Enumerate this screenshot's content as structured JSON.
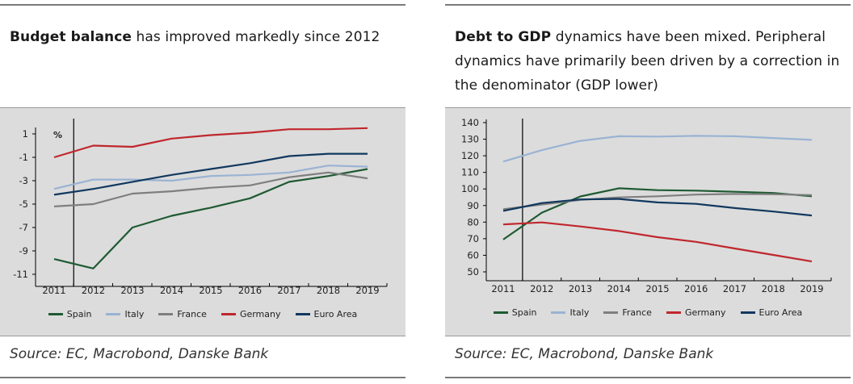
{
  "panels": [
    {
      "title_bold": "Budget balance",
      "title_rest": " has improved markedly since 2012",
      "source": "Source: EC, Macrobond, Danske Bank"
    },
    {
      "title_bold": "Debt to GDP",
      "title_rest": " dynamics have been mixed. Peripheral dynamics have primarily been driven by a correction in the denominator (GDP lower)",
      "source": "Source: EC, Macrobond, Danske Bank"
    }
  ],
  "chart_data": [
    {
      "type": "line",
      "title": "Budget balance has improved markedly since 2012",
      "ylabel": "%",
      "xlabel": "",
      "ylim": [
        -12,
        2
      ],
      "yticks": [
        1,
        -1,
        -3,
        -5,
        -7,
        -9,
        -11
      ],
      "xlim": [
        2011,
        2019
      ],
      "xticks": [
        "2011",
        "2012",
        "2013",
        "2014",
        "2015",
        "2016",
        "2017",
        "2018",
        "2019"
      ],
      "vline": 2011.5,
      "unit_label": "%",
      "series": [
        {
          "name": "Spain",
          "color": "#1f5a33",
          "x": [
            2011,
            2012,
            2013,
            2014,
            2015,
            2016,
            2017,
            2018,
            2019
          ],
          "values": [
            -9.7,
            -10.5,
            -7.0,
            -6.0,
            -5.3,
            -4.5,
            -3.1,
            -2.6,
            -2.0
          ]
        },
        {
          "name": "Italy",
          "color": "#9ab3d3",
          "x": [
            2011,
            2012,
            2013,
            2014,
            2015,
            2016,
            2017,
            2018,
            2019
          ],
          "values": [
            -3.7,
            -2.9,
            -2.9,
            -3.0,
            -2.6,
            -2.5,
            -2.3,
            -1.7,
            -1.8
          ]
        },
        {
          "name": "France",
          "color": "#7f7f7f",
          "x": [
            2011,
            2012,
            2013,
            2014,
            2015,
            2016,
            2017,
            2018,
            2019
          ],
          "values": [
            -5.2,
            -5.0,
            -4.1,
            -3.9,
            -3.6,
            -3.4,
            -2.7,
            -2.3,
            -2.8
          ]
        },
        {
          "name": "Germany",
          "color": "#c0272d",
          "x": [
            2011,
            2012,
            2013,
            2014,
            2015,
            2016,
            2017,
            2018,
            2019
          ],
          "values": [
            -1.0,
            0.0,
            -0.1,
            0.6,
            0.9,
            1.1,
            1.4,
            1.4,
            1.5
          ]
        },
        {
          "name": "Euro Area",
          "color": "#11385e",
          "x": [
            2011,
            2012,
            2013,
            2014,
            2015,
            2016,
            2017,
            2018,
            2019
          ],
          "values": [
            -4.2,
            -3.7,
            -3.1,
            -2.5,
            -2.0,
            -1.5,
            -0.9,
            -0.7,
            -0.7
          ]
        }
      ]
    },
    {
      "type": "line",
      "title": "Debt to GDP",
      "xlabel": "",
      "ylabel": "",
      "ylim": [
        45,
        143
      ],
      "yticks": [
        140,
        130,
        120,
        110,
        100,
        90,
        80,
        70,
        60,
        50
      ],
      "xlim": [
        2011,
        2019
      ],
      "xticks": [
        "2011",
        "2012",
        "2013",
        "2014",
        "2015",
        "2016",
        "2017",
        "2018",
        "2019"
      ],
      "vline": 2011.5,
      "series": [
        {
          "name": "Spain",
          "color": "#1f5a33",
          "x": [
            2011,
            2012,
            2013,
            2014,
            2015,
            2016,
            2017,
            2018,
            2019
          ],
          "values": [
            69.5,
            85.7,
            95.5,
            100.4,
            99.3,
            99.0,
            98.3,
            97.6,
            95.6
          ]
        },
        {
          "name": "Italy",
          "color": "#9ab3d3",
          "x": [
            2011,
            2012,
            2013,
            2014,
            2015,
            2016,
            2017,
            2018,
            2019
          ],
          "values": [
            116.5,
            123.4,
            129.0,
            131.8,
            131.6,
            132.0,
            131.8,
            130.7,
            129.6
          ]
        },
        {
          "name": "France",
          "color": "#7f7f7f",
          "x": [
            2011,
            2012,
            2013,
            2014,
            2015,
            2016,
            2017,
            2018,
            2019
          ],
          "values": [
            87.8,
            90.6,
            93.4,
            94.9,
            95.6,
            96.6,
            97.0,
            96.8,
            96.3
          ]
        },
        {
          "name": "Germany",
          "color": "#c0272d",
          "x": [
            2011,
            2012,
            2013,
            2014,
            2015,
            2016,
            2017,
            2018,
            2019
          ],
          "values": [
            78.6,
            79.8,
            77.4,
            74.6,
            70.9,
            68.1,
            64.1,
            60.2,
            56.3
          ]
        },
        {
          "name": "Euro Area",
          "color": "#11385e",
          "x": [
            2011,
            2012,
            2013,
            2014,
            2015,
            2016,
            2017,
            2018,
            2019
          ],
          "values": [
            86.8,
            91.5,
            93.7,
            94.0,
            91.9,
            91.0,
            88.5,
            86.4,
            84.0
          ]
        }
      ]
    }
  ]
}
